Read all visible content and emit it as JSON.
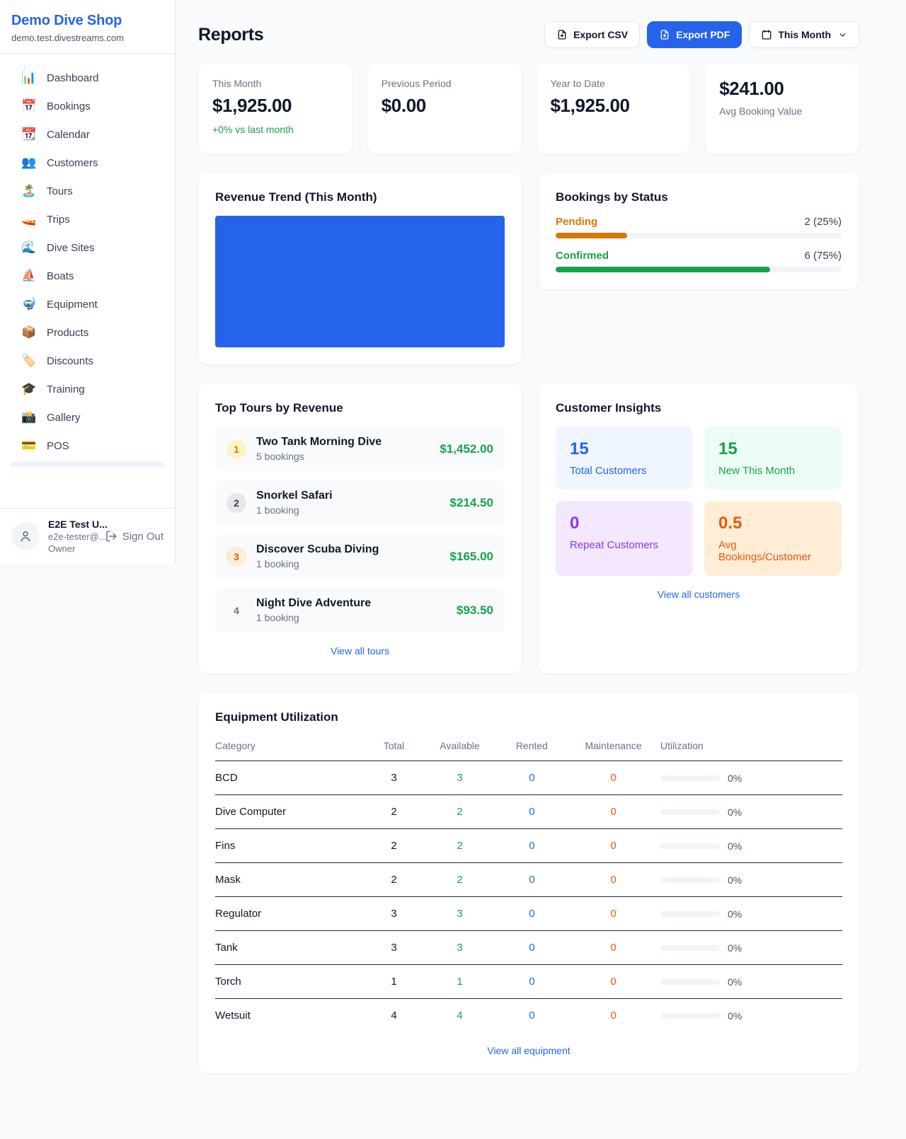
{
  "brand": {
    "name": "Demo Dive Shop",
    "domain": "demo.test.divestreams.com"
  },
  "sidebar": {
    "items": [
      {
        "label": "Dashboard",
        "icon": "📊"
      },
      {
        "label": "Bookings",
        "icon": "📅"
      },
      {
        "label": "Calendar",
        "icon": "📆"
      },
      {
        "label": "Customers",
        "icon": "👥"
      },
      {
        "label": "Tours",
        "icon": "🏝️"
      },
      {
        "label": "Trips",
        "icon": "🚤"
      },
      {
        "label": "Dive Sites",
        "icon": "🌊"
      },
      {
        "label": "Boats",
        "icon": "⛵"
      },
      {
        "label": "Equipment",
        "icon": "🤿"
      },
      {
        "label": "Products",
        "icon": "📦"
      },
      {
        "label": "Discounts",
        "icon": "🏷️"
      },
      {
        "label": "Training",
        "icon": "🎓"
      },
      {
        "label": "Gallery",
        "icon": "📸"
      },
      {
        "label": "POS",
        "icon": "💳"
      }
    ]
  },
  "user": {
    "name": "E2E Test U...",
    "email": "e2e-tester@...",
    "role": "Owner",
    "sign_out_label": "Sign Out"
  },
  "header": {
    "title": "Reports",
    "export_csv_label": "Export CSV",
    "export_pdf_label": "Export PDF",
    "period_label": "This Month"
  },
  "stats": [
    {
      "label": "This Month",
      "value": "$1,925.00",
      "delta": "+0% vs last month"
    },
    {
      "label": "Previous Period",
      "value": "$0.00"
    },
    {
      "label": "Year to Date",
      "value": "$1,925.00"
    },
    {
      "label": "Avg Booking Value",
      "value": "$241.00"
    }
  ],
  "revenue_trend": {
    "title": "Revenue Trend (This Month)",
    "chart_data": {
      "type": "bar",
      "bar_color": "#2563eb",
      "coverage": "single full-area bar, no axes or labels visible"
    }
  },
  "bookings_by_status": {
    "title": "Bookings by Status",
    "statuses": [
      {
        "label": "Pending",
        "count_label": "2 (25%)",
        "percent": 25,
        "color": "#d97706"
      },
      {
        "label": "Confirmed",
        "count_label": "6 (75%)",
        "percent": 75,
        "color": "#16a34a"
      }
    ]
  },
  "top_tours": {
    "title": "Top Tours by Revenue",
    "link_label": "View all tours",
    "tours": [
      {
        "rank": "1",
        "name": "Two Tank Morning Dive",
        "bookings": "5 bookings",
        "revenue": "$1,452.00"
      },
      {
        "rank": "2",
        "name": "Snorkel Safari",
        "bookings": "1 booking",
        "revenue": "$214.50"
      },
      {
        "rank": "3",
        "name": "Discover Scuba Diving",
        "bookings": "1 booking",
        "revenue": "$165.00"
      },
      {
        "rank": "4",
        "name": "Night Dive Adventure",
        "bookings": "1 booking",
        "revenue": "$93.50"
      }
    ]
  },
  "customer_insights": {
    "title": "Customer Insights",
    "link_label": "View all customers",
    "tiles": [
      {
        "value": "15",
        "label": "Total Customers",
        "color": "#2563eb",
        "bg": "#eff6ff"
      },
      {
        "value": "15",
        "label": "New This Month",
        "color": "#16a34a",
        "bg": "#ecfdf5"
      },
      {
        "value": "0",
        "label": "Repeat Customers",
        "color": "#9333ea",
        "bg": "#f3e8ff"
      },
      {
        "value": "0.5",
        "label": "Avg Bookings/Customer",
        "color": "#ea580c",
        "bg": "#ffedd5"
      }
    ]
  },
  "equipment": {
    "title": "Equipment Utilization",
    "link_label": "View all equipment",
    "headers": [
      "Category",
      "Total",
      "Available",
      "Rented",
      "Maintenance",
      "Utilization"
    ],
    "rows": [
      {
        "category": "BCD",
        "total": "3",
        "available": "3",
        "rented": "0",
        "maintenance": "0",
        "utilization_percent": 0,
        "utilization_label": "0%"
      },
      {
        "category": "Dive Computer",
        "total": "2",
        "available": "2",
        "rented": "0",
        "maintenance": "0",
        "utilization_percent": 0,
        "utilization_label": "0%"
      },
      {
        "category": "Fins",
        "total": "2",
        "available": "2",
        "rented": "0",
        "maintenance": "0",
        "utilization_percent": 0,
        "utilization_label": "0%"
      },
      {
        "category": "Mask",
        "total": "2",
        "available": "2",
        "rented": "0",
        "maintenance": "0",
        "utilization_percent": 0,
        "utilization_label": "0%"
      },
      {
        "category": "Regulator",
        "total": "3",
        "available": "3",
        "rented": "0",
        "maintenance": "0",
        "utilization_percent": 0,
        "utilization_label": "0%"
      },
      {
        "category": "Tank",
        "total": "3",
        "available": "3",
        "rented": "0",
        "maintenance": "0",
        "utilization_percent": 0,
        "utilization_label": "0%"
      },
      {
        "category": "Torch",
        "total": "1",
        "available": "1",
        "rented": "0",
        "maintenance": "0",
        "utilization_percent": 0,
        "utilization_label": "0%"
      },
      {
        "category": "Wetsuit",
        "total": "4",
        "available": "4",
        "rented": "0",
        "maintenance": "0",
        "utilization_percent": 0,
        "utilization_label": "0%"
      }
    ]
  },
  "colors": {
    "brand": "#2563eb",
    "accent": "#2563eb",
    "link": "#2563eb",
    "positive": "#16a34a",
    "pending": "#d97706",
    "maintenance": "#ea580c",
    "rented": "#2563eb"
  }
}
